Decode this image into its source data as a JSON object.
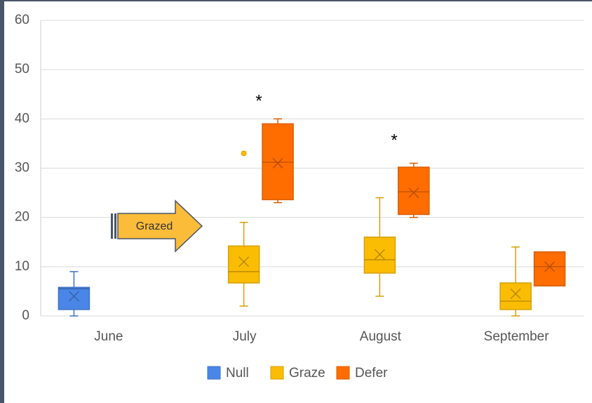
{
  "chart_data": {
    "type": "box",
    "categories": [
      "June",
      "July",
      "August",
      "September"
    ],
    "ylim": [
      0,
      60
    ],
    "yticks": [
      0,
      10,
      20,
      30,
      40,
      50,
      60
    ],
    "grid": true,
    "legend": "bottom",
    "annotations": [
      "*",
      "*",
      "Grazed"
    ],
    "series": [
      {
        "name": "Null",
        "color": "#4a86e8",
        "values": [
          {
            "min": 0,
            "q1": 1.3,
            "median": 5.5,
            "q3": 5.8,
            "max": 9,
            "mean": 4,
            "outliers": []
          },
          null,
          null,
          null
        ]
      },
      {
        "name": "Graze",
        "color": "#fbbc04",
        "values": [
          null,
          {
            "min": 2,
            "q1": 6.7,
            "median": 9,
            "q3": 14.2,
            "max": 19,
            "mean": 11,
            "outliers": [
              33
            ]
          },
          {
            "min": 4,
            "q1": 8.7,
            "median": 11.4,
            "q3": 16,
            "max": 24,
            "mean": 12.5,
            "outliers": []
          },
          {
            "min": 0,
            "q1": 1.3,
            "median": 3,
            "q3": 6.7,
            "max": 14,
            "mean": 4.5,
            "outliers": []
          }
        ]
      },
      {
        "name": "Defer",
        "color": "#ff6d01",
        "values": [
          null,
          {
            "min": 23,
            "q1": 23.6,
            "median": 31.2,
            "q3": 39,
            "max": 40,
            "mean": 31,
            "outliers": []
          },
          {
            "min": 20,
            "q1": 20.6,
            "median": 25.2,
            "q3": 30.2,
            "max": 31,
            "mean": 25,
            "outliers": []
          },
          {
            "min": 6.1,
            "q1": 6.1,
            "median": 10,
            "q3": 13,
            "max": 13,
            "mean": 10,
            "outliers": []
          }
        ]
      }
    ]
  }
}
